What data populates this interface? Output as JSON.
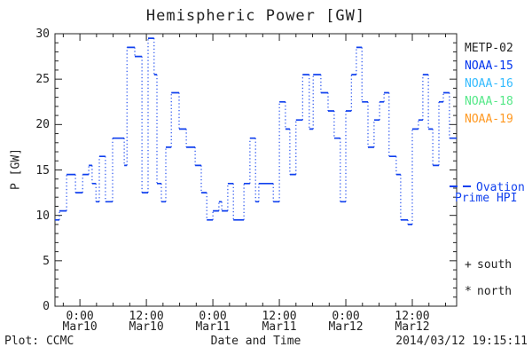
{
  "title": "Hemispheric Power [GW]",
  "footer": {
    "credit": "Plot: CCMC",
    "xlabel": "Date and Time",
    "timestamp": "2014/03/12 19:15:11"
  },
  "ylabel": "P [GW]",
  "colors": {
    "axis_text": "#222222",
    "curve": "#1040ee",
    "ovation_text": "#1040ee"
  },
  "legend": {
    "satellites": [
      {
        "label": "METP-02",
        "color": "#222222"
      },
      {
        "label": "NOAA-15",
        "color": "#0033ee"
      },
      {
        "label": "NOAA-16",
        "color": "#33bbff"
      },
      {
        "label": "NOAA-18",
        "color": "#55e888"
      },
      {
        "label": "NOAA-19",
        "color": "#ff9922"
      }
    ],
    "model": {
      "line1": "Ovation",
      "line2": "Prime HPI"
    },
    "markers": [
      {
        "symbol": "+",
        "label": "south"
      },
      {
        "symbol": "*",
        "label": "north"
      }
    ]
  },
  "chart_data": {
    "type": "line",
    "style": "step-plot, horizontal runs solid, vertical jumps dotted",
    "title": "Hemispheric Power [GW]",
    "xlabel": "Date and Time",
    "ylabel": "P [GW]",
    "ylim": [
      0,
      30
    ],
    "yticks": [
      0,
      5,
      10,
      15,
      20,
      25,
      30
    ],
    "y_minor_step": 1,
    "xlim_hours": [
      -4.5,
      68
    ],
    "x_unit": "hours relative to Mar10 0:00",
    "x_minor_step_hours": 3,
    "xticks": [
      {
        "hours": 0,
        "line1": "0:00",
        "line2": "Mar10"
      },
      {
        "hours": 12,
        "line1": "12:00",
        "line2": "Mar10"
      },
      {
        "hours": 24,
        "line1": "0:00",
        "line2": "Mar11"
      },
      {
        "hours": 36,
        "line1": "12:00",
        "line2": "Mar11"
      },
      {
        "hours": 48,
        "line1": "0:00",
        "line2": "Mar12"
      },
      {
        "hours": 60,
        "line1": "12:00",
        "line2": "Mar12"
      }
    ],
    "grid": false,
    "legend_position": "right",
    "series": [
      {
        "name": "Ovation Prime HPI",
        "color": "#1040ee",
        "steps_hours_gw": [
          [
            -4.5,
            9.5
          ],
          [
            -3.7,
            10.5
          ],
          [
            -2.4,
            14.5
          ],
          [
            -0.8,
            12.5
          ],
          [
            0.5,
            14.5
          ],
          [
            1.6,
            15.5
          ],
          [
            2.2,
            13.5
          ],
          [
            2.9,
            11.5
          ],
          [
            3.5,
            16.5
          ],
          [
            4.6,
            11.5
          ],
          [
            5.9,
            18.5
          ],
          [
            8.0,
            15.5
          ],
          [
            8.5,
            28.5
          ],
          [
            9.9,
            27.5
          ],
          [
            11.2,
            12.5
          ],
          [
            12.3,
            29.5
          ],
          [
            13.4,
            25.5
          ],
          [
            13.9,
            13.5
          ],
          [
            14.7,
            11.5
          ],
          [
            15.5,
            17.5
          ],
          [
            16.5,
            23.5
          ],
          [
            17.9,
            19.5
          ],
          [
            19.2,
            17.5
          ],
          [
            20.8,
            15.5
          ],
          [
            21.9,
            12.5
          ],
          [
            22.9,
            9.5
          ],
          [
            24.0,
            10.5
          ],
          [
            25.1,
            11.5
          ],
          [
            25.6,
            10.5
          ],
          [
            26.7,
            13.5
          ],
          [
            27.7,
            9.5
          ],
          [
            29.6,
            13.5
          ],
          [
            30.7,
            18.5
          ],
          [
            31.7,
            11.5
          ],
          [
            32.3,
            13.5
          ],
          [
            34.9,
            11.5
          ],
          [
            36.0,
            22.5
          ],
          [
            37.1,
            19.5
          ],
          [
            37.9,
            14.5
          ],
          [
            39.0,
            20.5
          ],
          [
            40.2,
            25.5
          ],
          [
            41.4,
            19.5
          ],
          [
            42.1,
            25.5
          ],
          [
            43.5,
            23.5
          ],
          [
            44.8,
            21.5
          ],
          [
            45.9,
            18.5
          ],
          [
            47.0,
            11.5
          ],
          [
            48.0,
            21.5
          ],
          [
            49.0,
            25.5
          ],
          [
            49.9,
            28.5
          ],
          [
            50.9,
            22.5
          ],
          [
            52.0,
            17.5
          ],
          [
            53.1,
            20.5
          ],
          [
            54.1,
            22.5
          ],
          [
            54.9,
            23.5
          ],
          [
            55.8,
            16.5
          ],
          [
            57.1,
            14.5
          ],
          [
            57.9,
            9.5
          ],
          [
            59.2,
            9.0
          ],
          [
            60.0,
            19.5
          ],
          [
            61.1,
            20.5
          ],
          [
            61.9,
            25.5
          ],
          [
            62.9,
            19.5
          ],
          [
            63.7,
            15.5
          ],
          [
            64.8,
            22.5
          ],
          [
            65.6,
            23.5
          ],
          [
            66.7,
            18.5
          ],
          [
            68.0,
            18.5
          ]
        ]
      }
    ]
  }
}
